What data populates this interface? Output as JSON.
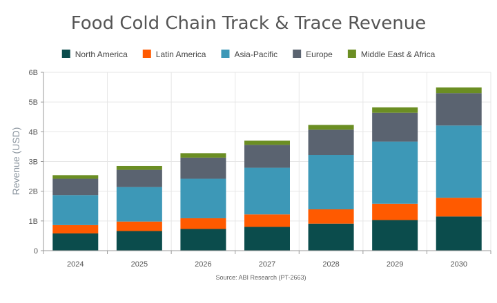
{
  "chart_data": {
    "type": "bar",
    "stacked": true,
    "title": "Food Cold Chain Track & Trace Revenue",
    "ylabel": "Revenue (USD)",
    "source": "Source: ABI Research (PT-2663)",
    "ylim": [
      0,
      6
    ],
    "yticks": [
      {
        "value": 0,
        "label": "0"
      },
      {
        "value": 1,
        "label": "1B"
      },
      {
        "value": 2,
        "label": "2B"
      },
      {
        "value": 3,
        "label": "3B"
      },
      {
        "value": 4,
        "label": "4B"
      },
      {
        "value": 5,
        "label": "5B"
      },
      {
        "value": 6,
        "label": "6B"
      }
    ],
    "categories": [
      "2024",
      "2025",
      "2026",
      "2027",
      "2028",
      "2029",
      "2030"
    ],
    "grid": true,
    "legend_position": "top",
    "series": [
      {
        "name": "North America",
        "color": "#0b4c4c",
        "values": [
          0.58,
          0.66,
          0.73,
          0.8,
          0.91,
          1.03,
          1.15
        ]
      },
      {
        "name": "Latin America",
        "color": "#ff5a00",
        "values": [
          0.28,
          0.32,
          0.36,
          0.42,
          0.48,
          0.55,
          0.63
        ]
      },
      {
        "name": "Asia-Pacific",
        "color": "#3d98b7",
        "values": [
          1.01,
          1.16,
          1.33,
          1.57,
          1.83,
          2.09,
          2.43
        ]
      },
      {
        "name": "Europe",
        "color": "#5a6370",
        "values": [
          0.55,
          0.58,
          0.71,
          0.77,
          0.85,
          0.97,
          1.09
        ]
      },
      {
        "name": "Middle East & Africa",
        "color": "#6b8e23",
        "values": [
          0.12,
          0.13,
          0.15,
          0.14,
          0.16,
          0.18,
          0.19
        ]
      }
    ]
  }
}
